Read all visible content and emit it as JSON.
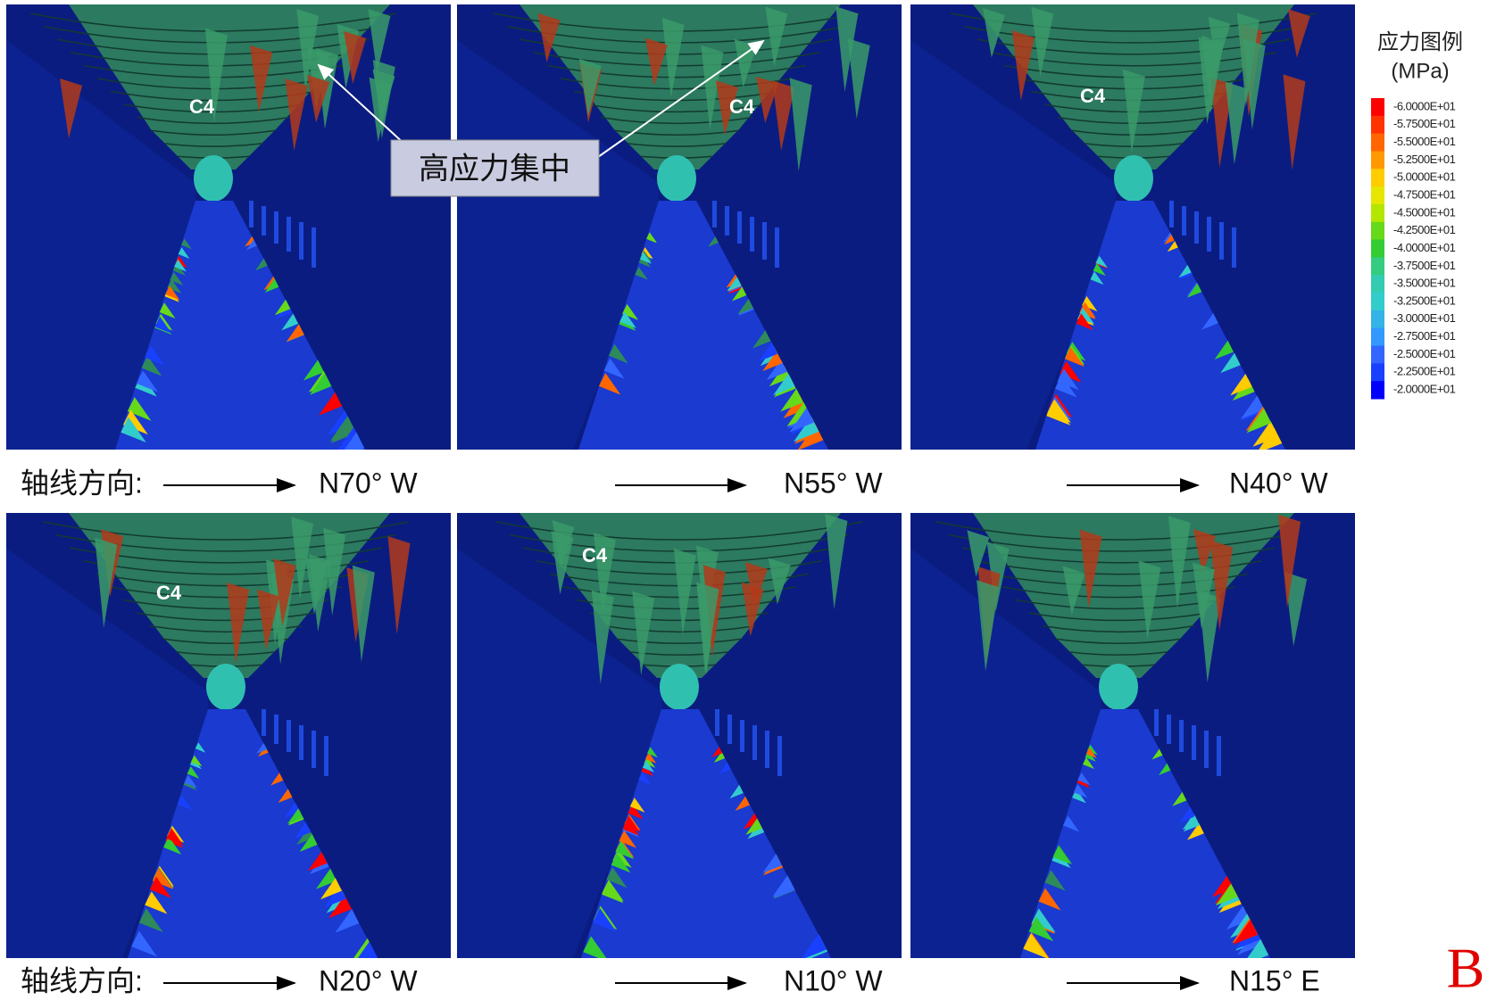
{
  "panels": [
    {
      "label": "C4",
      "direction": "N70°  W"
    },
    {
      "label": "C4",
      "direction": "N55°  W"
    },
    {
      "label": "C4",
      "direction": "N40°  W"
    },
    {
      "label": "C4",
      "direction": "N20°  W"
    },
    {
      "label": "C4",
      "direction": "N10°  W"
    },
    {
      "direction": "N15°  E"
    }
  ],
  "axis_label": [
    "轴线方向:",
    "轴线方向:"
  ],
  "callout": "高应力集中",
  "legend": {
    "title": "应力图例",
    "unit": "(MPa)",
    "entries": [
      {
        "label": "-6.0000E+01",
        "color": "#ff0000"
      },
      {
        "label": "-5.7500E+01",
        "color": "#ff3300"
      },
      {
        "label": "-5.5000E+01",
        "color": "#ff6600"
      },
      {
        "label": "-5.2500E+01",
        "color": "#ff9900"
      },
      {
        "label": "-5.0000E+01",
        "color": "#ffcc00"
      },
      {
        "label": "-4.7500E+01",
        "color": "#e6e600"
      },
      {
        "label": "-4.5000E+01",
        "color": "#b3e600"
      },
      {
        "label": "-4.2500E+01",
        "color": "#66d91a"
      },
      {
        "label": "-4.0000E+01",
        "color": "#33cc33"
      },
      {
        "label": "-3.7500E+01",
        "color": "#33cc80"
      },
      {
        "label": "-3.5000E+01",
        "color": "#33ccb3"
      },
      {
        "label": "-3.2500E+01",
        "color": "#33cccc"
      },
      {
        "label": "-3.0000E+01",
        "color": "#33b3e6"
      },
      {
        "label": "-2.7500E+01",
        "color": "#3399ff"
      },
      {
        "label": "-2.5000E+01",
        "color": "#3366ff"
      },
      {
        "label": "-2.2500E+01",
        "color": "#1a40ff"
      },
      {
        "label": "-2.0000E+01",
        "color": "#0000ff"
      }
    ]
  },
  "figure_label": "B"
}
